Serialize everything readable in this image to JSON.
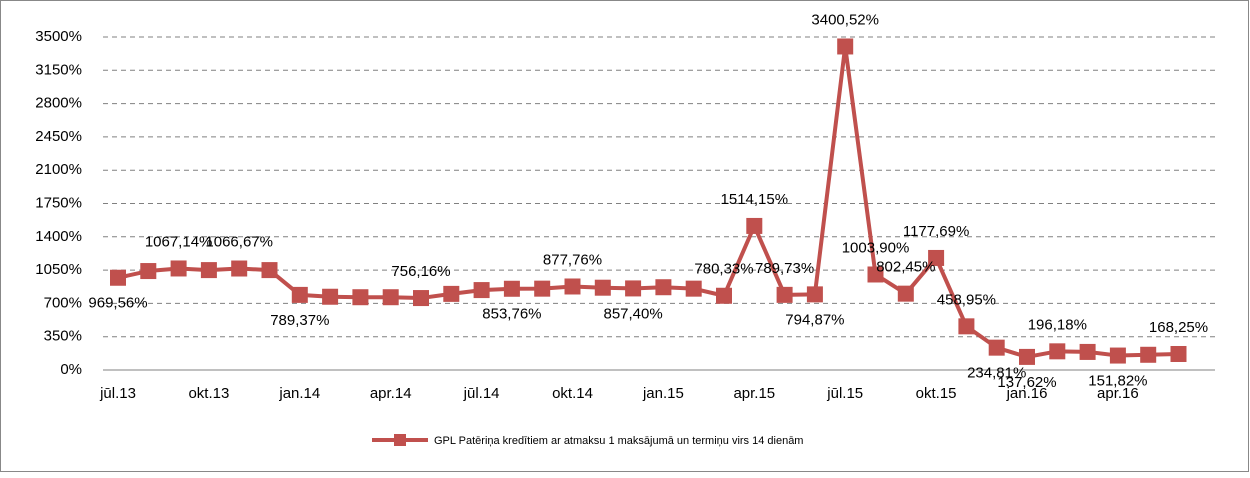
{
  "chart_data": {
    "type": "line",
    "categories": [
      "jūl.13",
      null,
      null,
      "okt.13",
      null,
      null,
      "jan.14",
      null,
      null,
      "apr.14",
      null,
      null,
      "jūl.14",
      null,
      null,
      "okt.14",
      null,
      null,
      "jan.15",
      null,
      null,
      "apr.15",
      null,
      null,
      "jūl.15",
      null,
      null,
      "okt.15",
      null,
      null,
      "jan.16",
      null,
      null,
      "apr.16",
      null,
      null
    ],
    "series": [
      {
        "name": "GPL Patēriņa kredītiem ar atmaksu 1 maksājumā un termiņu virs 14 dienām",
        "color": "#c0504d",
        "values": [
          969.56,
          1040,
          1067.14,
          1050,
          1066.67,
          1050,
          789.37,
          770,
          765,
          765,
          756.16,
          800,
          840,
          853.76,
          855,
          877.76,
          865,
          857.4,
          870,
          855,
          780.33,
          1514.15,
          789.73,
          794.87,
          3400.52,
          1003.9,
          802.45,
          1177.69,
          458.95,
          234.81,
          137.62,
          196.18,
          190,
          151.82,
          160,
          168.25
        ],
        "value_labels": [
          "969,56%",
          null,
          "1067,14%",
          null,
          "1066,67%",
          null,
          "789,37%",
          null,
          null,
          null,
          "756,16%",
          null,
          null,
          "853,76%",
          null,
          "877,76%",
          null,
          "857,40%",
          null,
          null,
          "780,33%",
          "1514,15%",
          "789,73%",
          "794,87%",
          "3400,52%",
          "1003,90%",
          "802,45%",
          "1177,69%",
          "458,95%",
          "234,81%",
          "137,62%",
          "196,18%",
          null,
          "151,82%",
          null,
          "168,25%"
        ]
      }
    ],
    "ylim": [
      0,
      3500
    ],
    "yticks": [
      {
        "value": 0,
        "label": "0%"
      },
      {
        "value": 350,
        "label": "350%"
      },
      {
        "value": 700,
        "label": "700%"
      },
      {
        "value": 1050,
        "label": "1050%"
      },
      {
        "value": 1400,
        "label": "1400%"
      },
      {
        "value": 1750,
        "label": "1750%"
      },
      {
        "value": 2100,
        "label": "2100%"
      },
      {
        "value": 2450,
        "label": "2450%"
      },
      {
        "value": 2800,
        "label": "2800%"
      },
      {
        "value": 3150,
        "label": "3150%"
      },
      {
        "value": 3500,
        "label": "3500%"
      }
    ],
    "grid": true,
    "legend": "bottom"
  }
}
